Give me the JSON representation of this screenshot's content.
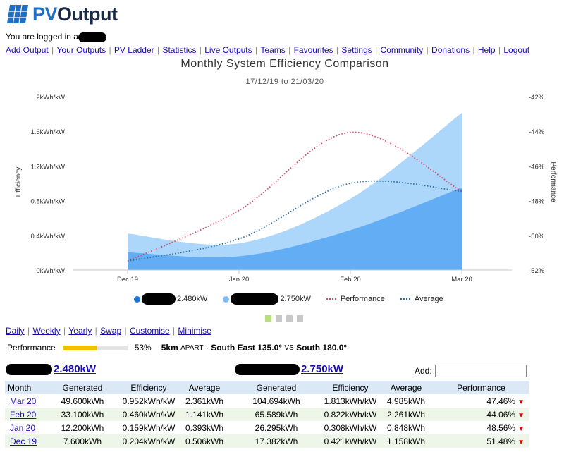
{
  "app": {
    "logo_text_a": "PV",
    "logo_text_b": "Output",
    "logged_in_text": "You are logged in a"
  },
  "nav": [
    "Add Output",
    "Your Outputs",
    "PV Ladder",
    "Statistics",
    "Live Outputs",
    "Teams",
    "Favourites",
    "Settings",
    "Community",
    "Donations",
    "Help",
    "Logout"
  ],
  "chart": {
    "title": "Monthly System Efficiency Comparison",
    "subtitle": "17/12/19 to 21/03/20",
    "y_left_label": "Efficiency",
    "y_right_label": "Performance",
    "y_left_ticks": [
      "2kWh/kW",
      "1.6kWh/kW",
      "1.2kWh/kW",
      "0.8kWh/kW",
      "0.4kWh/kW",
      "0kWh/kW"
    ],
    "y_right_ticks": [
      "-42%",
      "-44%",
      "-46%",
      "-48%",
      "-50%",
      "-52%"
    ],
    "x_ticks": [
      "Dec 19",
      "Jan 20",
      "Feb 20",
      "Mar 20"
    ]
  },
  "chart_data": {
    "type": "area",
    "x": [
      "Dec 19",
      "Jan 20",
      "Feb 20",
      "Mar 20"
    ],
    "ylim": [
      0,
      2
    ],
    "y2lim": [
      -52,
      -42
    ],
    "series": [
      {
        "name": "2.480kW",
        "values": [
          0.204,
          0.159,
          0.46,
          0.952
        ],
        "color": "#5aa8f2",
        "axis": "left"
      },
      {
        "name": "2.750kW",
        "values": [
          0.421,
          0.308,
          0.822,
          1.813
        ],
        "color": "#a9d4fb",
        "axis": "left"
      },
      {
        "name": "Performance",
        "values": [
          -51.48,
          -48.56,
          -44.06,
          -47.46
        ],
        "color": "#d04a6a",
        "axis": "right"
      },
      {
        "name": "Average",
        "values": [
          -51.48,
          -50.2,
          -47.0,
          -47.46
        ],
        "color": "#2a6fa0",
        "axis": "right"
      }
    ],
    "legend": "bottom",
    "grid": false
  },
  "legend": {
    "sys1_label": "2.480kW",
    "sys2_label": "2.750kW",
    "perf_label": "Performance",
    "avg_label": "Average"
  },
  "subnav": [
    "Daily",
    "Weekly",
    "Yearly",
    "Swap",
    "Customise",
    "Minimise"
  ],
  "perf_summary": {
    "label": "Performance",
    "percent_text": "53%",
    "fill": 0.53,
    "distance": "5km",
    "apart": "APART",
    "dir_a": "South East 135.0°",
    "vs": "VS",
    "dir_b": "South 180.0°"
  },
  "systems": {
    "sys1_size": "2.480kW",
    "sys2_size": "2.750kW",
    "add_label": "Add:",
    "add_value": ""
  },
  "table": {
    "headers": [
      "Month",
      "Generated",
      "Efficiency",
      "Average",
      "Generated",
      "Efficiency",
      "Average",
      "Performance"
    ],
    "rows": [
      {
        "month": "Mar 20",
        "g1": "49.600kWh",
        "e1": "0.952kWh/kW",
        "a1": "2.361kWh",
        "g2": "104.694kWh",
        "e2": "1.813kWh/kW",
        "a2": "4.985kWh",
        "perf": "47.46%"
      },
      {
        "month": "Feb 20",
        "g1": "33.100kWh",
        "e1": "0.460kWh/kW",
        "a1": "1.141kWh",
        "g2": "65.589kWh",
        "e2": "0.822kWh/kW",
        "a2": "2.261kWh",
        "perf": "44.06%"
      },
      {
        "month": "Jan 20",
        "g1": "12.200kWh",
        "e1": "0.159kWh/kW",
        "a1": "0.393kWh",
        "g2": "26.295kWh",
        "e2": "0.308kWh/kW",
        "a2": "0.848kWh",
        "perf": "48.56%"
      },
      {
        "month": "Dec 19",
        "g1": "7.600kWh",
        "e1": "0.204kWh/kW",
        "a1": "0.506kWh",
        "g2": "17.382kWh",
        "e2": "0.421kWh/kW",
        "a2": "1.158kWh",
        "perf": "51.48%"
      }
    ]
  }
}
